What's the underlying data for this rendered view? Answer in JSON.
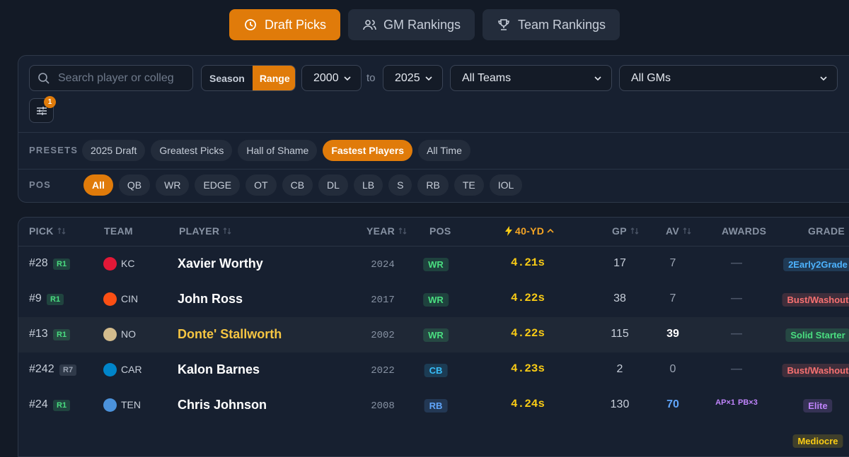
{
  "tabs": [
    {
      "label": "Draft Picks",
      "active": true
    },
    {
      "label": "GM Rankings",
      "active": false
    },
    {
      "label": "Team Rankings",
      "active": false
    }
  ],
  "filters": {
    "search_placeholder": "Search player or colleg",
    "mode": [
      {
        "label": "Season",
        "active": false
      },
      {
        "label": "Range",
        "active": true
      }
    ],
    "year_from": "2000",
    "to": "to",
    "year_to": "2025",
    "team": "All Teams",
    "gm": "All GMs",
    "filter_badge": 1
  },
  "presets": {
    "label": "PRESETS",
    "items": [
      {
        "label": "2025 Draft",
        "active": false
      },
      {
        "label": "Greatest Picks",
        "active": false
      },
      {
        "label": "Hall of Shame",
        "active": false
      },
      {
        "label": "Fastest Players",
        "active": true
      },
      {
        "label": "All Time",
        "active": false
      }
    ]
  },
  "positions": {
    "label": "POS",
    "items": [
      {
        "label": "All",
        "active": true
      },
      {
        "label": "QB",
        "active": false
      },
      {
        "label": "WR",
        "active": false
      },
      {
        "label": "EDGE",
        "active": false
      },
      {
        "label": "OT",
        "active": false
      },
      {
        "label": "CB",
        "active": false
      },
      {
        "label": "DL",
        "active": false
      },
      {
        "label": "LB",
        "active": false
      },
      {
        "label": "S",
        "active": false
      },
      {
        "label": "RB",
        "active": false
      },
      {
        "label": "TE",
        "active": false
      },
      {
        "label": "IOL",
        "active": false
      }
    ]
  },
  "table": {
    "columns": [
      {
        "label": "PICK",
        "sortable": true,
        "active": false
      },
      {
        "label": "TEAM",
        "sortable": false,
        "active": false
      },
      {
        "label": "PLAYER",
        "sortable": true,
        "active": false
      },
      {
        "label": "YEAR",
        "sortable": true,
        "active": false
      },
      {
        "label": "POS",
        "sortable": false,
        "active": false
      },
      {
        "label": "40-YD",
        "sortable": true,
        "active": true
      },
      {
        "label": "GP",
        "sortable": true,
        "active": false
      },
      {
        "label": "AV",
        "sortable": true,
        "active": false
      },
      {
        "label": "AWARDS",
        "sortable": false,
        "active": false
      },
      {
        "label": "GRADE",
        "sortable": false,
        "active": false
      }
    ],
    "rows": [
      {
        "pick": "#28",
        "round": "R1",
        "round_color": "#4ade80",
        "team": "KC",
        "team_color": "#e31837",
        "player": "Xavier Worthy",
        "highlight": false,
        "year": 2024,
        "pos": "WR",
        "pos_color": "#4ade80",
        "forty": "4.21s",
        "gp": 17,
        "av": 7,
        "av_color": "#9aa3b2",
        "awards": [
          "—"
        ],
        "grade": "2Early2Grade",
        "grade_color": "#4db3ff"
      },
      {
        "pick": "#9",
        "round": "R1",
        "round_color": "#4ade80",
        "team": "CIN",
        "team_color": "#fb4f14",
        "player": "John Ross",
        "highlight": false,
        "year": 2017,
        "pos": "WR",
        "pos_color": "#4ade80",
        "forty": "4.22s",
        "gp": 38,
        "av": 7,
        "av_color": "#9aa3b2",
        "awards": [
          "—"
        ],
        "grade": "Bust/Washout",
        "grade_color": "#f87171"
      },
      {
        "pick": "#13",
        "round": "R1",
        "round_color": "#4ade80",
        "team": "NO",
        "team_color": "#d3bc8d",
        "player": "Donte' Stallworth",
        "highlight": true,
        "year": 2002,
        "pos": "WR",
        "pos_color": "#4ade80",
        "forty": "4.22s",
        "gp": 115,
        "av": 39,
        "av_color": "#ffffff",
        "awards": [
          "—"
        ],
        "grade": "Solid Starter",
        "grade_color": "#4ade80"
      },
      {
        "pick": "#242",
        "round": "R7",
        "round_color": "#9aa3b2",
        "team": "CAR",
        "team_color": "#0085ca",
        "player": "Kalon Barnes",
        "highlight": false,
        "year": 2022,
        "pos": "CB",
        "pos_color": "#38bdf8",
        "forty": "4.23s",
        "gp": 2,
        "av": 0,
        "av_color": "#9aa3b2",
        "awards": [
          "—"
        ],
        "grade": "Bust/Washout",
        "grade_color": "#f87171"
      },
      {
        "pick": "#24",
        "round": "R1",
        "round_color": "#4ade80",
        "team": "TEN",
        "team_color": "#4b92db",
        "player": "Chris Johnson",
        "highlight": false,
        "year": 2008,
        "pos": "RB",
        "pos_color": "#60a5fa",
        "forty": "4.24s",
        "gp": 130,
        "av": 70,
        "av_color": "#60a5fa",
        "awards": [
          "AP×1",
          "PB×3"
        ],
        "grade": "Elite",
        "grade_color": "#c084fc"
      },
      {
        "grade": "Mediocre",
        "grade_color": "#facc15"
      }
    ]
  }
}
